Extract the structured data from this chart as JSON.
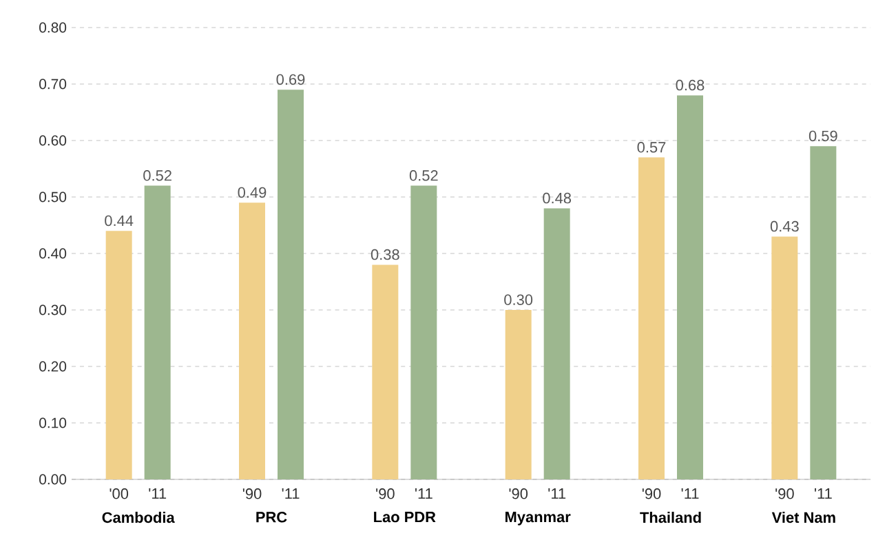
{
  "chart_data": {
    "type": "bar",
    "categories": [
      "Cambodia",
      "PRC",
      "Lao PDR",
      "Myanmar",
      "Thailand",
      "Viet Nam"
    ],
    "series": [
      {
        "color": "#f0d08a",
        "values": [
          0.44,
          0.49,
          0.38,
          0.3,
          0.57,
          0.43
        ],
        "value_labels": [
          "0.44",
          "0.49",
          "0.38",
          "0.30",
          "0.57",
          "0.43"
        ]
      },
      {
        "color": "#9db78f",
        "values": [
          0.52,
          0.69,
          0.52,
          0.48,
          0.68,
          0.59
        ],
        "value_labels": [
          "0.52",
          "0.69",
          "0.52",
          "0.48",
          "0.68",
          "0.59"
        ]
      }
    ],
    "ylim": [
      0,
      0.8
    ],
    "yticks": [
      {
        "value": 0,
        "label": "0.00"
      },
      {
        "value": 0.1,
        "label": "0.10"
      },
      {
        "value": 0.2,
        "label": "0.20"
      },
      {
        "value": 0.3,
        "label": "0.30"
      },
      {
        "value": 0.4,
        "label": "0.40"
      },
      {
        "value": 0.5,
        "label": "0.50"
      },
      {
        "value": 0.6,
        "label": "0.60"
      },
      {
        "value": 0.7,
        "label": "0.70"
      },
      {
        "value": 0.8,
        "label": "0.80"
      }
    ],
    "grid": "y",
    "annotations": [
      "'00",
      "'11",
      "'90",
      "'11",
      "'90",
      "'11",
      "'90",
      "'11",
      "'90",
      "'11",
      "'90",
      "'11"
    ]
  }
}
